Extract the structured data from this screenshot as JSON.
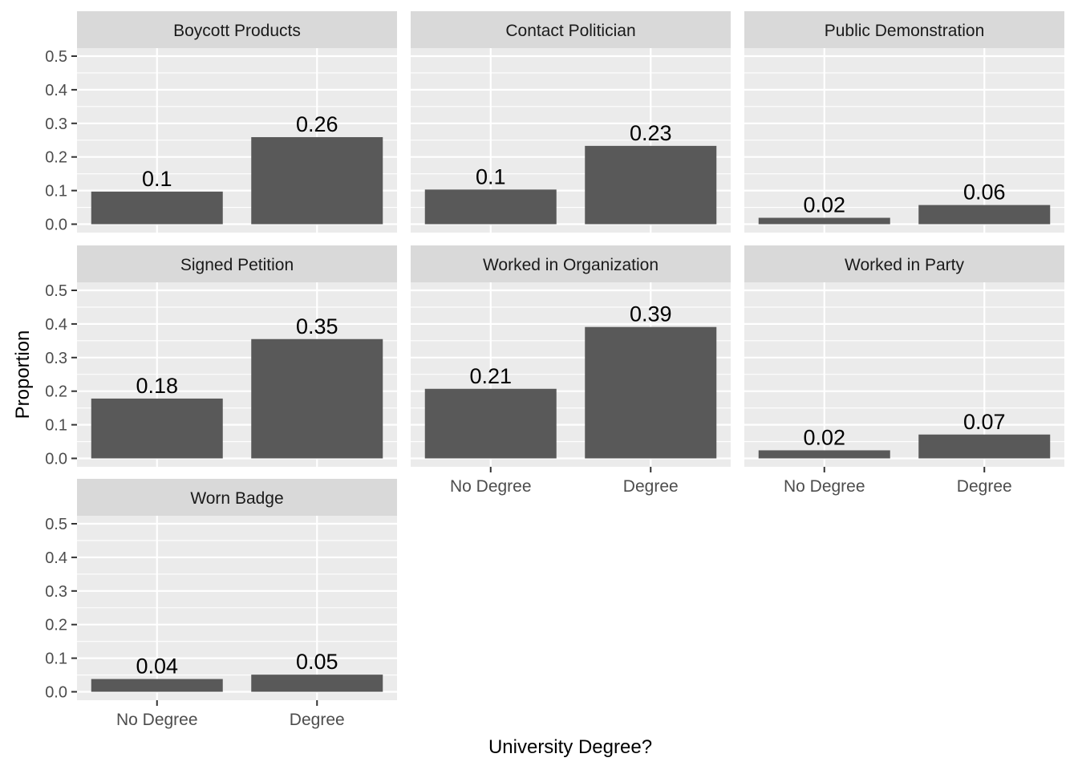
{
  "chart_data": {
    "type": "bar",
    "layout": "faceted",
    "xlabel": "University Degree?",
    "ylabel": "Proportion",
    "categories": [
      "No Degree",
      "Degree"
    ],
    "ylim": [
      0,
      0.5
    ],
    "yticks": [
      "0.0",
      "0.1",
      "0.2",
      "0.3",
      "0.4",
      "0.5"
    ],
    "grid": true,
    "bar_color": "#595959",
    "panel_bg": "#EBEBEB",
    "strip_bg": "#D9D9D9",
    "grid_color": "#FFFFFF",
    "facets": [
      {
        "title": "Boycott Products",
        "values": [
          0.097,
          0.259
        ],
        "labels": [
          "0.1",
          "0.26"
        ]
      },
      {
        "title": "Contact Politician",
        "values": [
          0.103,
          0.233
        ],
        "labels": [
          "0.1",
          "0.23"
        ]
      },
      {
        "title": "Public Demonstration",
        "values": [
          0.019,
          0.057
        ],
        "labels": [
          "0.02",
          "0.06"
        ]
      },
      {
        "title": "Signed Petition",
        "values": [
          0.178,
          0.355
        ],
        "labels": [
          "0.18",
          "0.35"
        ]
      },
      {
        "title": "Worked in Organization",
        "values": [
          0.207,
          0.391
        ],
        "labels": [
          "0.21",
          "0.39"
        ]
      },
      {
        "title": "Worked in Party",
        "values": [
          0.024,
          0.071
        ],
        "labels": [
          "0.02",
          "0.07"
        ]
      },
      {
        "title": "Worn Badge",
        "values": [
          0.038,
          0.051
        ],
        "labels": [
          "0.04",
          "0.05"
        ]
      }
    ]
  }
}
